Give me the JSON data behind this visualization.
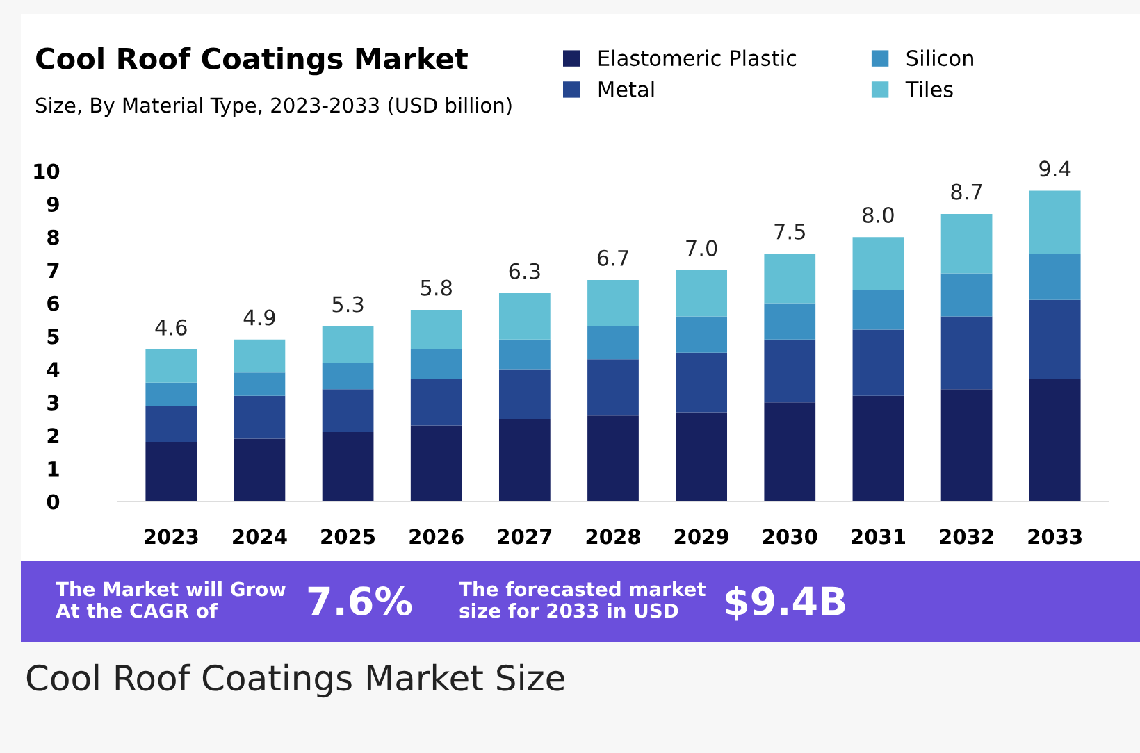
{
  "chart_data": {
    "type": "bar",
    "stacked": true,
    "title": "Cool Roof Coatings Market",
    "subtitle": "Size, By Material Type, 2023-2033 (USD billion)",
    "categories": [
      "2023",
      "2024",
      "2025",
      "2026",
      "2027",
      "2028",
      "2029",
      "2030",
      "2031",
      "2032",
      "2033"
    ],
    "series": [
      {
        "name": "Elastomeric Plastic",
        "color": "#172160",
        "values": [
          1.8,
          1.9,
          2.1,
          2.3,
          2.5,
          2.6,
          2.7,
          3.0,
          3.2,
          3.4,
          3.7
        ]
      },
      {
        "name": "Metal",
        "color": "#25468f",
        "values": [
          1.1,
          1.3,
          1.3,
          1.4,
          1.5,
          1.7,
          1.8,
          1.9,
          2.0,
          2.2,
          2.4
        ]
      },
      {
        "name": "Silicon",
        "color": "#3b90c2",
        "values": [
          0.7,
          0.7,
          0.8,
          0.9,
          0.9,
          1.0,
          1.1,
          1.1,
          1.2,
          1.3,
          1.4
        ]
      },
      {
        "name": "Tiles",
        "color": "#62bfd4",
        "values": [
          1.0,
          1.0,
          1.1,
          1.2,
          1.4,
          1.4,
          1.4,
          1.5,
          1.6,
          1.8,
          1.9
        ]
      }
    ],
    "totals": [
      "4.6",
      "4.9",
      "5.3",
      "5.8",
      "6.3",
      "6.7",
      "7.0",
      "7.5",
      "8.0",
      "8.7",
      "9.4"
    ],
    "ylim": [
      0,
      10
    ],
    "yticks": [
      0,
      1,
      2,
      3,
      4,
      5,
      6,
      7,
      8,
      9,
      10
    ],
    "grid": false,
    "legend": "top right",
    "annotations": [
      "The Market will Grow\nAt the CAGR of",
      "7.6%",
      "The forecasted market\nsize for 2033 in USD",
      "$9.4B",
      "Cool Roof Coatings Market Size"
    ]
  }
}
